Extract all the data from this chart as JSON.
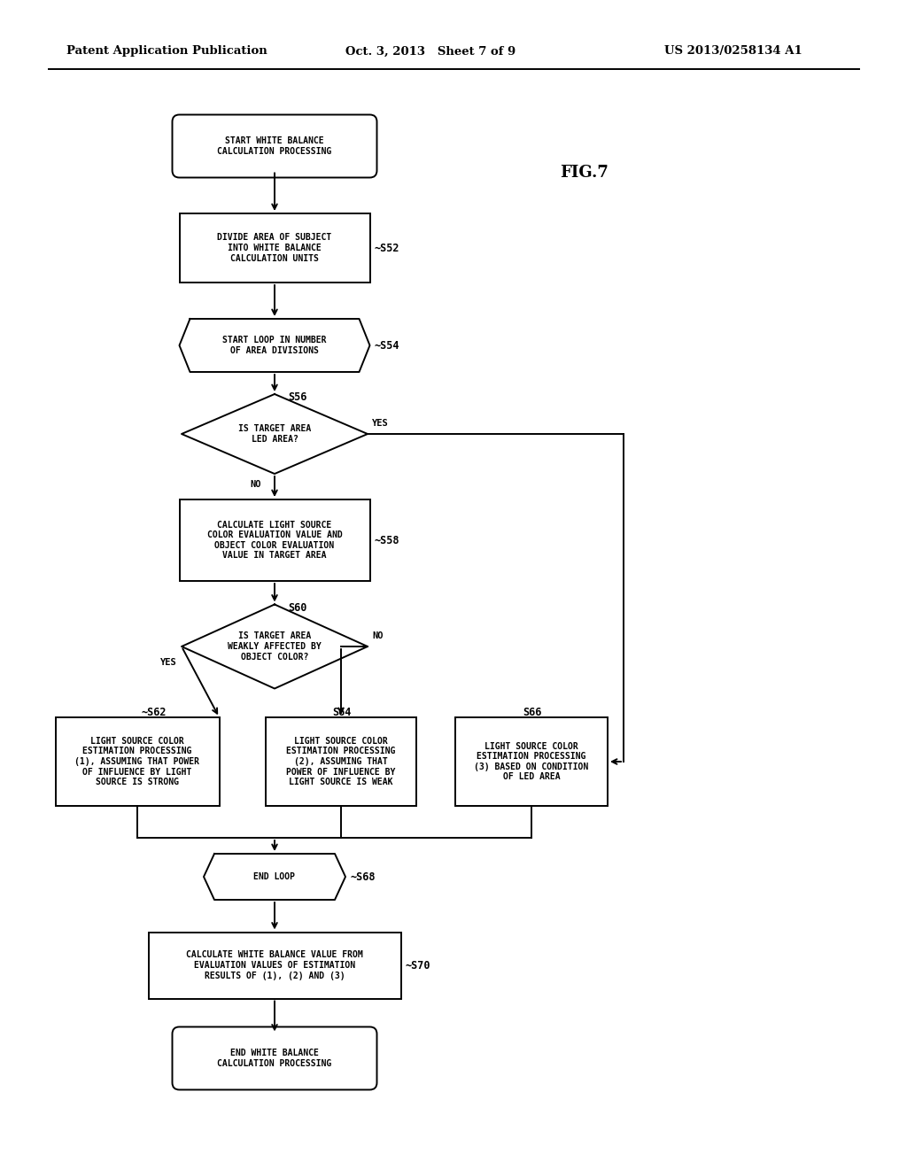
{
  "bg_color": "#ffffff",
  "header_left": "Patent Application Publication",
  "header_mid": "Oct. 3, 2013   Sheet 7 of 9",
  "header_right": "US 2013/0258134 A1",
  "fig_label": "FIG.7",
  "font_size_node": 7.0,
  "font_size_header": 9.5,
  "font_size_label": 8.5,
  "font_size_figlabel": 13,
  "line_width": 1.4,
  "arrow_mutation": 10
}
